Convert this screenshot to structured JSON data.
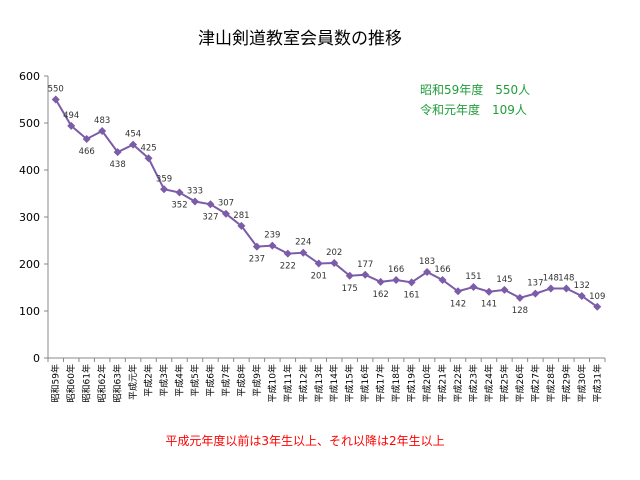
{
  "chart_data": {
    "type": "line",
    "title": "津山剣道教室会員数の推移",
    "xlabel": "",
    "ylabel": "",
    "ylim": [
      0,
      600
    ],
    "yticks": [
      0,
      100,
      200,
      300,
      400,
      500,
      600
    ],
    "grid": false,
    "legend": "none",
    "series_color": "#7b5ca8",
    "categories": [
      "昭和59年",
      "昭和60年",
      "昭和61年",
      "昭和62年",
      "昭和63年",
      "平成元年",
      "平成2年",
      "平成3年",
      "平成4年",
      "平成5年",
      "平成6年",
      "平成7年",
      "平成8年",
      "平成9年",
      "平成10年",
      "平成11年",
      "平成12年",
      "平成13年",
      "平成14年",
      "平成15年",
      "平成16年",
      "平成17年",
      "平成18年",
      "平成19年",
      "平成20年",
      "平成21年",
      "平成22年",
      "平成23年",
      "平成24年",
      "平成25年",
      "平成26年",
      "平成27年",
      "平成28年",
      "平成29年",
      "平成30年",
      "平成31年"
    ],
    "values": [
      550,
      494,
      466,
      483,
      438,
      454,
      425,
      359,
      352,
      333,
      327,
      307,
      281,
      237,
      239,
      222,
      224,
      201,
      202,
      175,
      177,
      162,
      166,
      161,
      183,
      166,
      142,
      151,
      141,
      145,
      128,
      137,
      148,
      148,
      132,
      109
    ],
    "annotations": {
      "green_lines": [
        "昭和59年度　550人",
        "令和元年度　109人"
      ],
      "footnote": "平成元年度以前は3年生以上、それ以降は2年生以上"
    }
  }
}
